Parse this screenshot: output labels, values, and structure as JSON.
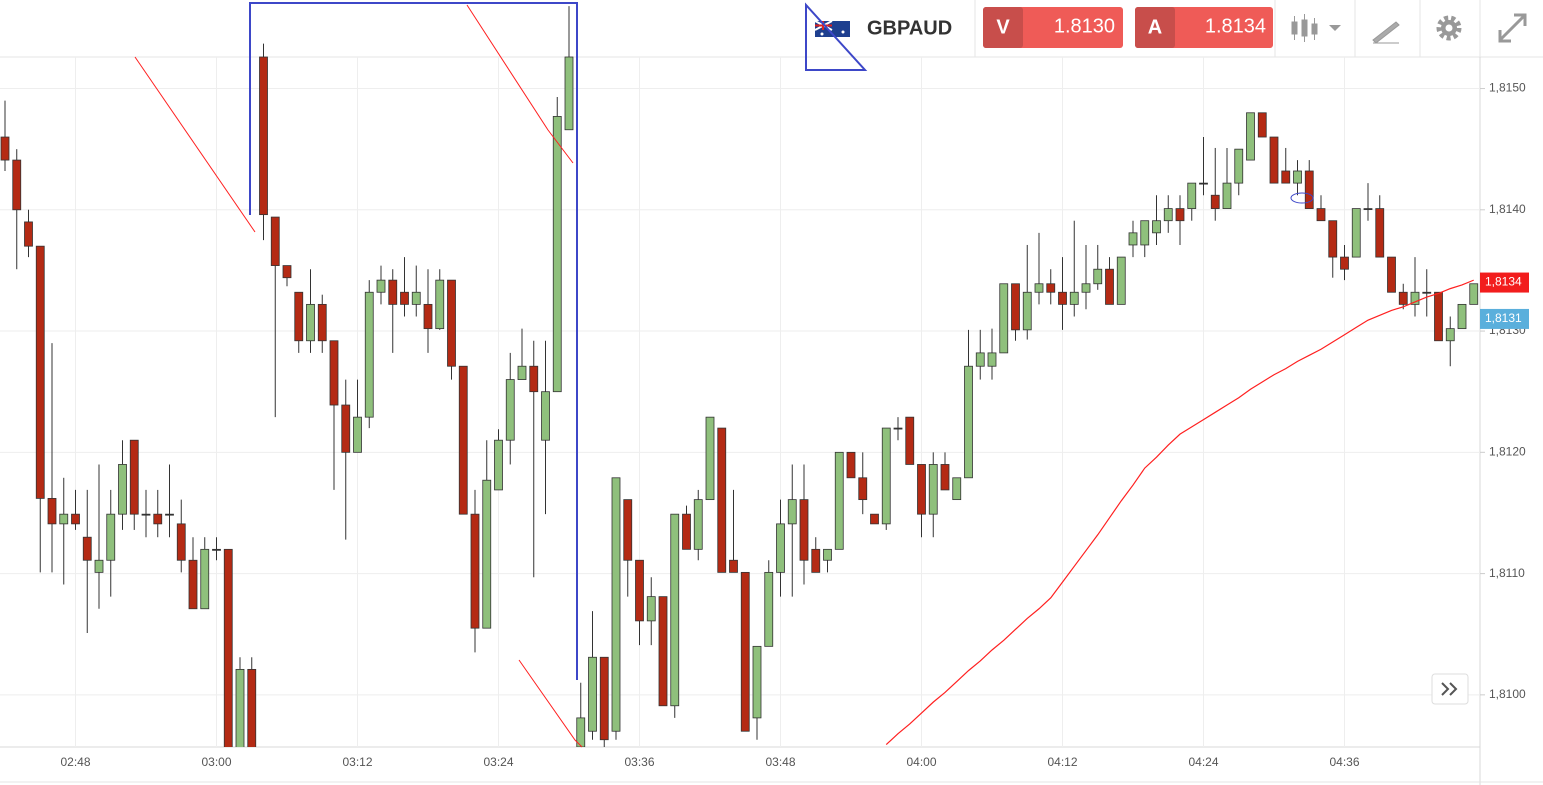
{
  "toolbar": {
    "symbol": "GBPAUD",
    "sell": {
      "label": "V",
      "price": "1.8130"
    },
    "buy": {
      "label": "A",
      "price": "1.8134"
    }
  },
  "chart_data": {
    "type": "candlestick",
    "categories": [
      null,
      null,
      null,
      null,
      null,
      null,
      "02:48",
      null,
      null,
      null,
      null,
      null,
      null,
      null,
      null,
      null,
      null,
      null,
      "03:00",
      null,
      null,
      null,
      null,
      null,
      null,
      null,
      null,
      null,
      null,
      null,
      "03:12",
      null,
      null,
      null,
      null,
      null,
      null,
      null,
      null,
      null,
      null,
      null,
      "03:24",
      null,
      null,
      null,
      null,
      null,
      null,
      null,
      null,
      null,
      null,
      null,
      "03:36",
      null,
      null,
      null,
      null,
      null,
      null,
      null,
      null,
      null,
      null,
      null,
      "03:48",
      null,
      null,
      null,
      null,
      null,
      null,
      null,
      null,
      null,
      null,
      null,
      "04:00",
      null,
      null,
      null,
      null,
      null,
      null,
      null,
      null,
      null,
      null,
      null,
      "04:12",
      null,
      null,
      null,
      null,
      null,
      null,
      null,
      null,
      null,
      null,
      null,
      "04:24",
      null,
      null,
      null,
      null,
      null,
      null,
      null,
      null,
      null,
      null,
      null,
      "04:36",
      null,
      null,
      null,
      null,
      null,
      null,
      null,
      null,
      null,
      null,
      null
    ],
    "open": [
      1.8146,
      1.81441,
      1.8139,
      1.8137,
      1.81162,
      1.81141,
      1.81149,
      1.8113,
      1.81101,
      1.81111,
      1.81149,
      1.8121,
      1.81149,
      1.81149,
      1.81149,
      1.81141,
      1.81111,
      1.81071,
      1.8112,
      1.8112,
      1.80946,
      1.81021,
      1.81526,
      1.81394,
      1.81354,
      1.81332,
      1.81292,
      1.81322,
      1.81292,
      1.81239,
      1.812,
      1.81229,
      1.81332,
      1.81342,
      1.81332,
      1.81322,
      1.81322,
      1.81302,
      1.81342,
      1.81271,
      1.81149,
      1.81055,
      1.81169,
      1.8121,
      1.8126,
      1.81271,
      1.8121,
      1.8125,
      1.81466,
      1.80957,
      1.8097,
      1.81031,
      1.8097,
      1.81161,
      1.81111,
      1.81061,
      1.81081,
      1.80991,
      1.81149,
      1.8112,
      1.81161,
      1.8122,
      1.81111,
      1.81101,
      1.80981,
      1.8104,
      1.81101,
      1.81141,
      1.81161,
      1.8112,
      1.81111,
      1.8112,
      1.812,
      1.81179,
      1.81149,
      1.81141,
      1.8122,
      1.81229,
      1.8119,
      1.81149,
      1.8119,
      1.81161,
      1.81179,
      1.81271,
      1.81271,
      1.81282,
      1.81339,
      1.81301,
      1.81332,
      1.81339,
      1.81332,
      1.81322,
      1.81332,
      1.81339,
      1.81351,
      1.81322,
      1.81371,
      1.81371,
      1.81381,
      1.81391,
      1.81401,
      1.81401,
      1.81422,
      1.81412,
      1.81401,
      1.81422,
      1.81441,
      1.8148,
      1.8146,
      1.81432,
      1.81422,
      1.81432,
      1.81401,
      1.81391,
      1.81361,
      1.81361,
      1.81401,
      1.81401,
      1.81361,
      1.81332,
      1.81322,
      1.81332,
      1.81332,
      1.81292,
      1.81302,
      1.81322
    ],
    "high": [
      1.8149,
      1.8145,
      1.814,
      1.8137,
      1.8129,
      1.81179,
      1.81169,
      1.81169,
      1.8119,
      1.81169,
      1.8121,
      1.8121,
      1.81169,
      1.81169,
      1.8119,
      1.81161,
      1.8113,
      1.8113,
      1.8113,
      1.8112,
      1.81031,
      1.81031,
      1.81537,
      1.81394,
      1.81354,
      1.81332,
      1.81351,
      1.8133,
      1.81292,
      1.8126,
      1.8126,
      1.81342,
      1.81354,
      1.81351,
      1.81361,
      1.81354,
      1.81351,
      1.81351,
      1.81342,
      1.81271,
      1.81169,
      1.8121,
      1.81219,
      1.81282,
      1.81302,
      1.81292,
      1.81292,
      1.81493,
      1.81568,
      1.8101,
      1.81069,
      1.81031,
      1.81179,
      1.81161,
      1.81111,
      1.81097,
      1.81081,
      1.81149,
      1.81156,
      1.81169,
      1.81229,
      1.8122,
      1.81169,
      1.81101,
      1.8104,
      1.81111,
      1.81161,
      1.8119,
      1.8119,
      1.8113,
      1.8112,
      1.812,
      1.812,
      1.812,
      1.81149,
      1.8122,
      1.81229,
      1.81229,
      1.8119,
      1.812,
      1.812,
      1.81179,
      1.81301,
      1.81301,
      1.81302,
      1.81339,
      1.81339,
      1.81371,
      1.81381,
      1.81351,
      1.81361,
      1.81391,
      1.81371,
      1.81371,
      1.81361,
      1.81361,
      1.81391,
      1.81391,
      1.81412,
      1.81412,
      1.81412,
      1.81422,
      1.8146,
      1.81451,
      1.81451,
      1.8145,
      1.8148,
      1.8148,
      1.8146,
      1.81451,
      1.81441,
      1.81441,
      1.81412,
      1.81391,
      1.81371,
      1.81401,
      1.81422,
      1.81412,
      1.81361,
      1.81339,
      1.81361,
      1.81351,
      1.81332,
      1.81312,
      1.81322,
      1.81339
    ],
    "low": [
      1.81432,
      1.81351,
      1.81361,
      1.81101,
      1.81101,
      1.81091,
      1.81136,
      1.81051,
      1.81071,
      1.81081,
      1.81136,
      1.81136,
      1.8113,
      1.8113,
      1.8113,
      1.81101,
      1.81071,
      1.81071,
      1.81111,
      1.80938,
      1.80938,
      1.80938,
      1.81375,
      1.81229,
      1.81337,
      1.81282,
      1.81282,
      1.81282,
      1.81169,
      1.81128,
      1.812,
      1.8122,
      1.81322,
      1.81282,
      1.81312,
      1.81312,
      1.81282,
      1.81301,
      1.8126,
      1.81149,
      1.81035,
      1.81055,
      1.81169,
      1.8119,
      1.8126,
      1.81097,
      1.81149,
      1.8125,
      1.81466,
      1.80957,
      1.80963,
      1.80957,
      1.80963,
      1.81081,
      1.81041,
      1.81041,
      1.80991,
      1.80981,
      1.8112,
      1.81111,
      1.81161,
      1.81101,
      1.81101,
      1.8097,
      1.80963,
      1.8104,
      1.81081,
      1.81081,
      1.81091,
      1.81101,
      1.81101,
      1.8112,
      1.81179,
      1.81149,
      1.81141,
      1.81136,
      1.8121,
      1.8119,
      1.8113,
      1.8113,
      1.81169,
      1.81161,
      1.81179,
      1.8126,
      1.8126,
      1.81282,
      1.81292,
      1.81293,
      1.81322,
      1.81322,
      1.81301,
      1.81312,
      1.81318,
      1.81334,
      1.81322,
      1.81322,
      1.81361,
      1.81361,
      1.81371,
      1.81381,
      1.81371,
      1.81391,
      1.81412,
      1.81391,
      1.81401,
      1.81412,
      1.81441,
      1.8146,
      1.81422,
      1.81422,
      1.81412,
      1.81401,
      1.81391,
      1.81344,
      1.81342,
      1.81361,
      1.81391,
      1.81361,
      1.81332,
      1.81318,
      1.81312,
      1.81312,
      1.81292,
      1.81271,
      1.81302,
      1.81322
    ],
    "close": [
      1.81441,
      1.814,
      1.8137,
      1.81162,
      1.81141,
      1.81149,
      1.81141,
      1.81111,
      1.81111,
      1.81149,
      1.8119,
      1.81149,
      1.81149,
      1.81141,
      1.81149,
      1.81111,
      1.81071,
      1.8112,
      1.8112,
      1.80946,
      1.81021,
      1.80946,
      1.81396,
      1.81354,
      1.81344,
      1.81292,
      1.81322,
      1.81292,
      1.81239,
      1.812,
      1.81229,
      1.81332,
      1.81342,
      1.81322,
      1.81322,
      1.81332,
      1.81302,
      1.81342,
      1.81271,
      1.81149,
      1.81055,
      1.81177,
      1.8121,
      1.8126,
      1.81271,
      1.8125,
      1.8125,
      1.81477,
      1.81526,
      1.80981,
      1.81031,
      1.80963,
      1.81179,
      1.81111,
      1.81061,
      1.81081,
      1.80991,
      1.81149,
      1.8112,
      1.81161,
      1.81229,
      1.81101,
      1.81101,
      1.8097,
      1.8104,
      1.81101,
      1.81141,
      1.81161,
      1.81111,
      1.81101,
      1.8112,
      1.812,
      1.81179,
      1.81161,
      1.81141,
      1.8122,
      1.8122,
      1.8119,
      1.81149,
      1.8119,
      1.81169,
      1.81179,
      1.81271,
      1.81282,
      1.81282,
      1.81339,
      1.81301,
      1.81332,
      1.81339,
      1.81332,
      1.81322,
      1.81332,
      1.81339,
      1.81351,
      1.81322,
      1.81361,
      1.81381,
      1.81391,
      1.81391,
      1.81401,
      1.81391,
      1.81422,
      1.81422,
      1.81401,
      1.81422,
      1.8145,
      1.8148,
      1.8146,
      1.81422,
      1.81422,
      1.81432,
      1.81401,
      1.81391,
      1.81361,
      1.81351,
      1.81401,
      1.81401,
      1.81361,
      1.81332,
      1.81322,
      1.81332,
      1.81332,
      1.81292,
      1.81302,
      1.81322,
      1.81339
    ],
    "up_color": "#8fc07c",
    "down_color": "#b42a14",
    "outline_color": "#333333",
    "moving_average": {
      "color": "#ff2020",
      "values": [
        null,
        null,
        null,
        null,
        null,
        null,
        null,
        null,
        null,
        null,
        null,
        null,
        null,
        null,
        null,
        null,
        null,
        null,
        null,
        null,
        null,
        null,
        null,
        null,
        null,
        null,
        null,
        null,
        null,
        null,
        null,
        null,
        null,
        null,
        null,
        null,
        null,
        null,
        null,
        null,
        null,
        null,
        null,
        null,
        null,
        null,
        null,
        null,
        null,
        null,
        null,
        null,
        null,
        null,
        null,
        null,
        null,
        null,
        null,
        null,
        null,
        null,
        null,
        null,
        null,
        null,
        null,
        null,
        null,
        null,
        null,
        null,
        null,
        null,
        null,
        1.80959,
        1.80968,
        1.80976,
        1.80985,
        1.80994,
        1.81002,
        1.81011,
        1.8102,
        1.81028,
        1.81037,
        1.81045,
        1.81054,
        1.81063,
        1.81071,
        1.8108,
        1.81093,
        1.81106,
        1.81119,
        1.81132,
        1.81146,
        1.8116,
        1.81173,
        1.81187,
        1.81196,
        1.81206,
        1.81215,
        1.81221,
        1.81227,
        1.81233,
        1.81239,
        1.81245,
        1.81252,
        1.81258,
        1.81264,
        1.81269,
        1.81275,
        1.8128,
        1.81285,
        1.81291,
        1.81297,
        1.81303,
        1.81309,
        1.81313,
        1.81317,
        1.8132,
        1.81324,
        1.81328,
        1.81331,
        1.81335,
        1.81338,
        1.81342
      ]
    },
    "ylim": [
      1.80957,
      1.81526
    ],
    "yticks": [
      {
        "value": 1.81,
        "label": "1,8100"
      },
      {
        "value": 1.811,
        "label": "1,8110"
      },
      {
        "value": 1.812,
        "label": "1,8120"
      },
      {
        "value": 1.813,
        "label": "1,8130"
      },
      {
        "value": 1.814,
        "label": "1,8140"
      },
      {
        "value": 1.815,
        "label": "1,8150"
      }
    ],
    "price_markers": [
      {
        "value": 1.8134,
        "label": "1,8134",
        "color": "#f21d1d"
      },
      {
        "value": 1.8131,
        "label": "1,8131",
        "color": "#5aafdc"
      }
    ],
    "grid": true
  }
}
